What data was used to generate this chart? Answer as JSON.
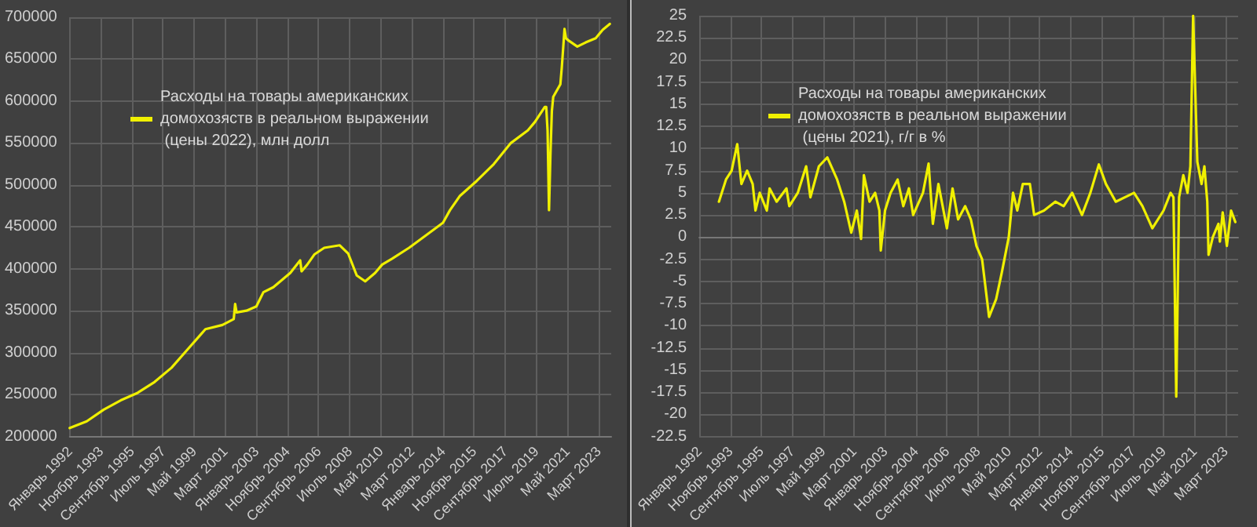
{
  "chart_data": [
    {
      "type": "line",
      "legend": "top",
      "grid": true,
      "marker": "none",
      "line_style": "solid",
      "xlim": [
        "1992-01",
        "2023-12"
      ],
      "xticks": [
        {
          "value": "1992-01",
          "label": "Январь 1992"
        },
        {
          "value": "1993-11",
          "label": "Ноябрь 1993"
        },
        {
          "value": "1995-09",
          "label": "Сентябрь 1995"
        },
        {
          "value": "1997-07",
          "label": "Июль 1997"
        },
        {
          "value": "1999-05",
          "label": "Май 1999"
        },
        {
          "value": "2001-03",
          "label": "Март 2001"
        },
        {
          "value": "2003-01",
          "label": "Январь 2003"
        },
        {
          "value": "2004-11",
          "label": "Ноябрь 2004"
        },
        {
          "value": "2006-09",
          "label": "Сентябрь 2006"
        },
        {
          "value": "2008-07",
          "label": "Июль 2008"
        },
        {
          "value": "2010-05",
          "label": "Май 2010"
        },
        {
          "value": "2012-03",
          "label": "Март 2012"
        },
        {
          "value": "2014-01",
          "label": "Январь 2014"
        },
        {
          "value": "2015-11",
          "label": "Ноябрь 2015"
        },
        {
          "value": "2017-09",
          "label": "Сентябрь 2017"
        },
        {
          "value": "2019-07",
          "label": "Июль 2019"
        },
        {
          "value": "2021-05",
          "label": "Май 2021"
        },
        {
          "value": "2023-03",
          "label": "Март 2023"
        }
      ],
      "ylim": [
        200000,
        700000
      ],
      "yticks": [
        200000,
        250000,
        300000,
        350000,
        400000,
        450000,
        500000,
        550000,
        600000,
        650000,
        700000
      ],
      "series": [
        {
          "name": "Расходы на товары американских домохозяств в реальном выражении (цены 2022), млн долл",
          "color": "#f0f000",
          "x": [
            "1992-01",
            "1993-01",
            "1994-01",
            "1995-01",
            "1996-01",
            "1997-01",
            "1998-01",
            "1999-01",
            "2000-01",
            "2001-01",
            "2001-09",
            "2001-10",
            "2001-11",
            "2002-06",
            "2003-01",
            "2003-06",
            "2004-01",
            "2005-01",
            "2005-08",
            "2005-09",
            "2006-01",
            "2006-06",
            "2007-01",
            "2007-12",
            "2008-06",
            "2008-12",
            "2009-06",
            "2010-01",
            "2010-06",
            "2011-01",
            "2012-01",
            "2013-01",
            "2014-01",
            "2014-06",
            "2015-01",
            "2016-01",
            "2017-01",
            "2018-01",
            "2019-01",
            "2019-06",
            "2020-01",
            "2020-02",
            "2020-03",
            "2020-04",
            "2020-05",
            "2020-06",
            "2020-07",
            "2020-12",
            "2021-01",
            "2021-03",
            "2021-04",
            "2021-06",
            "2021-12",
            "2022-06",
            "2023-01",
            "2023-06",
            "2023-11"
          ],
          "values": [
            210000,
            218000,
            232000,
            243000,
            252000,
            265000,
            282000,
            305000,
            328000,
            333000,
            340000,
            358000,
            348000,
            350000,
            355000,
            372000,
            378000,
            395000,
            410000,
            397000,
            405000,
            417000,
            425000,
            428000,
            418000,
            392000,
            385000,
            395000,
            405000,
            412000,
            425000,
            440000,
            455000,
            470000,
            487000,
            505000,
            525000,
            550000,
            565000,
            575000,
            593000,
            593000,
            565000,
            470000,
            535000,
            588000,
            605000,
            620000,
            640000,
            686000,
            675000,
            672000,
            665000,
            670000,
            675000,
            685000,
            692000
          ]
        }
      ]
    },
    {
      "type": "line",
      "legend": "top",
      "grid": true,
      "marker": "none",
      "line_style": "solid",
      "xlim": [
        "1992-01",
        "2023-12"
      ],
      "xticks": [
        {
          "value": "1992-01",
          "label": "Январь 1992"
        },
        {
          "value": "1993-11",
          "label": "Ноябрь 1993"
        },
        {
          "value": "1995-09",
          "label": "Сентябрь 1995"
        },
        {
          "value": "1997-07",
          "label": "Июль 1997"
        },
        {
          "value": "1999-05",
          "label": "Май 1999"
        },
        {
          "value": "2001-03",
          "label": "Март 2001"
        },
        {
          "value": "2003-01",
          "label": "Январь 2003"
        },
        {
          "value": "2004-11",
          "label": "Ноябрь 2004"
        },
        {
          "value": "2006-09",
          "label": "Сентябрь 2006"
        },
        {
          "value": "2008-07",
          "label": "Июль 2008"
        },
        {
          "value": "2010-05",
          "label": "Май 2010"
        },
        {
          "value": "2012-03",
          "label": "Март 2012"
        },
        {
          "value": "2014-01",
          "label": "Январь 2014"
        },
        {
          "value": "2015-11",
          "label": "Ноябрь 2015"
        },
        {
          "value": "2017-09",
          "label": "Сентябрь 2017"
        },
        {
          "value": "2019-07",
          "label": "Июль 2019"
        },
        {
          "value": "2021-05",
          "label": "Май 2021"
        },
        {
          "value": "2023-03",
          "label": "Март 2023"
        }
      ],
      "ylim": [
        -22.5,
        25
      ],
      "yticks": [
        -22.5,
        -20,
        -17.5,
        -15,
        -12.5,
        -10,
        -7.5,
        -5,
        -2.5,
        0,
        2.5,
        5,
        7.5,
        10,
        12.5,
        15,
        17.5,
        20,
        22.5,
        25
      ],
      "series": [
        {
          "name": "Расходы на товары американских домохозяств в реальном выражении (цены 2021), г/г в %",
          "color": "#f0f000",
          "x": [
            "1993-03",
            "1993-08",
            "1993-12",
            "1994-04",
            "1994-07",
            "1994-11",
            "1995-03",
            "1995-05",
            "1995-08",
            "1996-01",
            "1996-03",
            "1996-08",
            "1997-03",
            "1997-05",
            "1997-11",
            "1998-05",
            "1998-08",
            "1999-02",
            "1999-08",
            "2000-03",
            "2000-08",
            "2001-01",
            "2001-05",
            "2001-08",
            "2001-10",
            "2002-02",
            "2002-06",
            "2002-09",
            "2002-10",
            "2003-01",
            "2003-05",
            "2003-10",
            "2004-02",
            "2004-06",
            "2004-09",
            "2005-04",
            "2005-08",
            "2005-11",
            "2006-03",
            "2006-09",
            "2007-01",
            "2007-05",
            "2007-10",
            "2008-02",
            "2008-06",
            "2008-10",
            "2009-03",
            "2009-08",
            "2009-12",
            "2010-05",
            "2010-08",
            "2010-11",
            "2011-03",
            "2011-08",
            "2011-11",
            "2012-06",
            "2013-02",
            "2013-08",
            "2014-02",
            "2014-09",
            "2015-03",
            "2015-09",
            "2016-02",
            "2016-09",
            "2017-10",
            "2018-04",
            "2018-11",
            "2019-07",
            "2019-12",
            "2020-02",
            "2020-04",
            "2020-06",
            "2020-09",
            "2020-12",
            "2021-02",
            "2021-04",
            "2021-07",
            "2021-10",
            "2021-12",
            "2022-02",
            "2022-03",
            "2022-06",
            "2022-10",
            "2022-11",
            "2023-01",
            "2023-04",
            "2023-07",
            "2023-10"
          ],
          "values": [
            4,
            6.5,
            7.5,
            10.5,
            6,
            7.5,
            6,
            3,
            5,
            3,
            5.5,
            4,
            5.5,
            3.5,
            5,
            8,
            4.5,
            8,
            9,
            6.5,
            4,
            0.5,
            3,
            -0.2,
            7,
            4,
            5,
            3,
            -1.5,
            3,
            5,
            6.5,
            3.5,
            5.5,
            2.5,
            5,
            8.3,
            1.5,
            6,
            1,
            5.5,
            2,
            3.5,
            2,
            -1,
            -2.5,
            -9,
            -7,
            -4,
            0,
            5,
            3,
            6,
            6,
            2.5,
            3,
            4,
            3.5,
            5,
            2.5,
            5,
            8.2,
            6,
            4,
            5,
            3.5,
            1,
            3,
            5,
            4.5,
            -18,
            4.5,
            7,
            5,
            8,
            25,
            8.5,
            6,
            8,
            4,
            -2,
            0,
            1.5,
            -0.5,
            2.8,
            -1,
            3,
            1.7
          ]
        }
      ]
    }
  ]
}
